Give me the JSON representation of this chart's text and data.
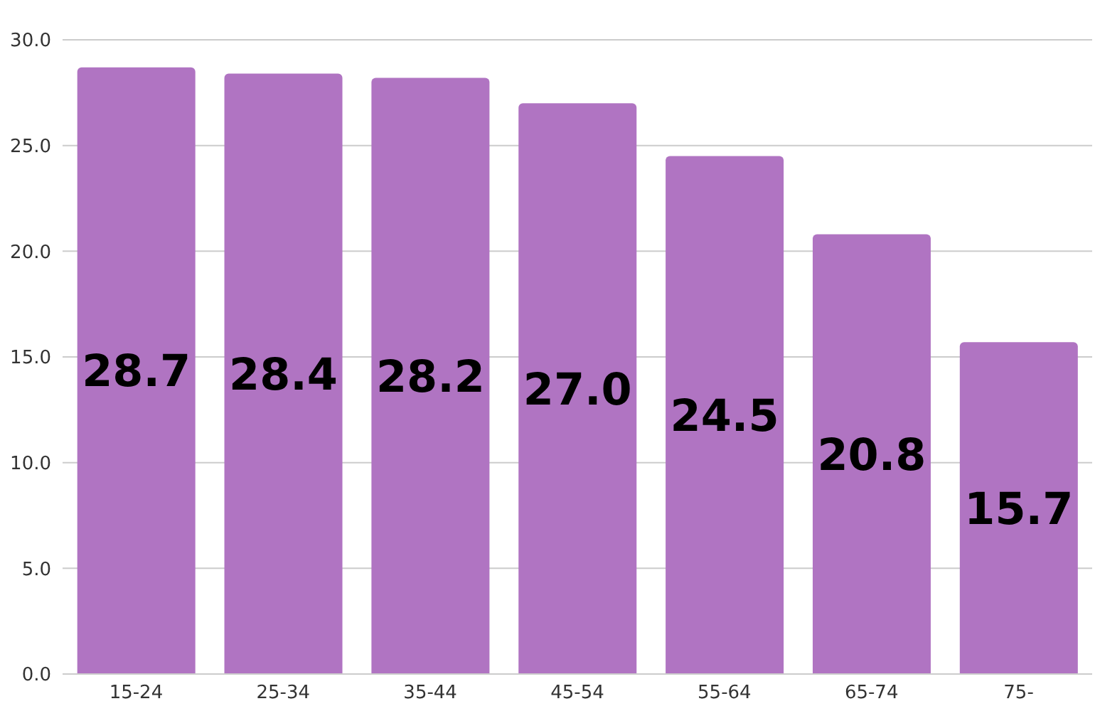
{
  "chart_data": {
    "type": "bar",
    "categories": [
      "15-24",
      "25-34",
      "35-44",
      "45-54",
      "55-64",
      "65-74",
      "75-"
    ],
    "values": [
      28.7,
      28.4,
      28.2,
      27.0,
      24.5,
      20.8,
      15.7
    ],
    "color": "#b074c2",
    "ylim": [
      0,
      30
    ],
    "yticks": [
      {
        "value": 0,
        "label": "0.0"
      },
      {
        "value": 5,
        "label": "5.0"
      },
      {
        "value": 10,
        "label": "10.0"
      },
      {
        "value": 15,
        "label": "15.0"
      },
      {
        "value": 20,
        "label": "20.0"
      },
      {
        "value": 25,
        "label": "25.0"
      },
      {
        "value": 30,
        "label": "30.0"
      }
    ],
    "grid": "y",
    "value_labels": [
      "28.7",
      "28.4",
      "28.2",
      "27.0",
      "24.5",
      "20.8",
      "15.7"
    ]
  }
}
